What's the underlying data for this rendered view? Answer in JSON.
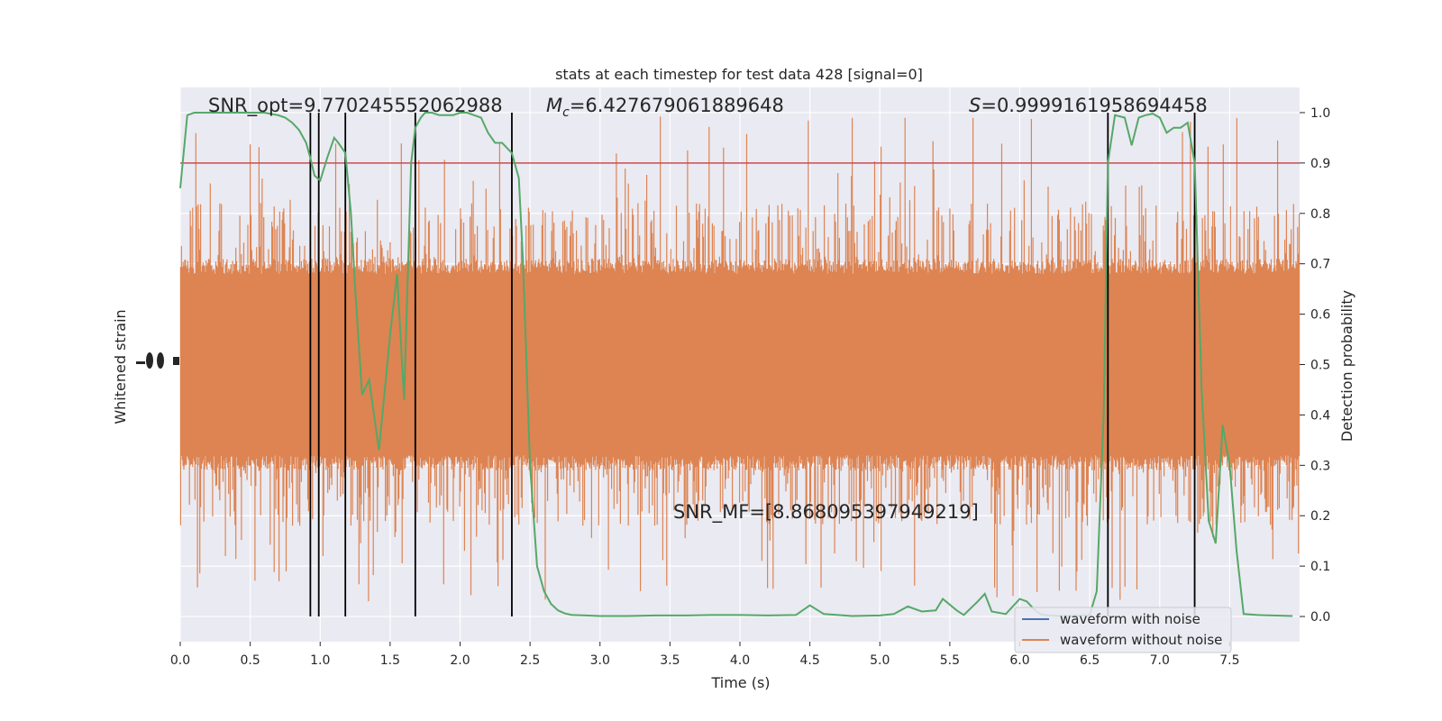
{
  "chart_data": {
    "type": "line",
    "title": "stats at each timestep for test data 428 [signal=0]",
    "xlabel": "Time (s)",
    "ylabel_left": "Whitened strain",
    "ylabel_right": "Detection probability",
    "xlim": [
      0.0,
      8.0
    ],
    "ylim_right": [
      -0.05,
      1.05
    ],
    "x_ticks": [
      "0.0",
      "0.5",
      "1.0",
      "1.5",
      "2.0",
      "2.5",
      "3.0",
      "3.5",
      "4.0",
      "4.5",
      "5.0",
      "5.5",
      "6.0",
      "6.5",
      "7.0",
      "7.5"
    ],
    "y_ticks_right": [
      "0.0",
      "0.1",
      "0.2",
      "0.3",
      "0.4",
      "0.5",
      "0.6",
      "0.7",
      "0.8",
      "0.9",
      "1.0"
    ],
    "grid": true,
    "legend_position": "lower-right",
    "legend": [
      {
        "label": "waveform with noise",
        "color": "#4c72b0"
      },
      {
        "label": "waveform without noise",
        "color": "#dd8452"
      }
    ],
    "annotations": {
      "snr_opt": "SNR_opt=9.770245552062988",
      "mc_symbol": "M",
      "mc_subscript": "c",
      "mc_value": "=6.427679061889648",
      "s_symbol": "S",
      "s_value": "=0.9999161958694458",
      "snr_mf": "SNR_MF=[8.868095397949219]"
    },
    "threshold": {
      "y": 0.9,
      "color": "#c44e52"
    },
    "vertical_lines_x": [
      0.93,
      0.99,
      1.18,
      1.68,
      2.37,
      6.63,
      7.25
    ],
    "strain_band": {
      "color": "#dd8452",
      "samples": 1400,
      "core_low": 0.32,
      "core_high": 0.68,
      "spike_min": 0.03,
      "spike_max": 1.0
    },
    "detection_probability": {
      "color": "#55a868",
      "x": [
        0.0,
        0.05,
        0.1,
        0.2,
        0.3,
        0.4,
        0.5,
        0.6,
        0.7,
        0.75,
        0.8,
        0.85,
        0.9,
        0.93,
        0.96,
        1.0,
        1.05,
        1.1,
        1.13,
        1.18,
        1.22,
        1.25,
        1.3,
        1.35,
        1.42,
        1.5,
        1.55,
        1.6,
        1.65,
        1.68,
        1.72,
        1.75,
        1.8,
        1.85,
        1.9,
        1.95,
        2.0,
        2.05,
        2.1,
        2.15,
        2.2,
        2.25,
        2.3,
        2.37,
        2.42,
        2.45,
        2.5,
        2.55,
        2.6,
        2.65,
        2.7,
        2.75,
        2.8,
        2.9,
        3.0,
        3.2,
        3.4,
        3.6,
        3.8,
        4.0,
        4.2,
        4.4,
        4.5,
        4.6,
        4.8,
        5.0,
        5.1,
        5.2,
        5.3,
        5.4,
        5.45,
        5.55,
        5.6,
        5.7,
        5.75,
        5.8,
        5.9,
        6.0,
        6.05,
        6.1,
        6.15,
        6.2,
        6.3,
        6.45,
        6.5,
        6.55,
        6.6,
        6.63,
        6.68,
        6.75,
        6.8,
        6.85,
        6.9,
        6.95,
        7.0,
        7.05,
        7.1,
        7.15,
        7.2,
        7.25,
        7.3,
        7.35,
        7.4,
        7.45,
        7.5,
        7.55,
        7.6,
        7.7,
        7.8,
        7.95
      ],
      "y": [
        0.85,
        0.995,
        1.0,
        1.0,
        1.0,
        1.0,
        1.0,
        1.0,
        0.995,
        0.99,
        0.98,
        0.965,
        0.94,
        0.91,
        0.875,
        0.865,
        0.91,
        0.95,
        0.94,
        0.92,
        0.8,
        0.65,
        0.44,
        0.47,
        0.33,
        0.56,
        0.68,
        0.43,
        0.9,
        0.97,
        0.99,
        1.0,
        1.0,
        0.995,
        0.995,
        0.995,
        1.0,
        1.0,
        0.995,
        0.99,
        0.96,
        0.94,
        0.94,
        0.92,
        0.87,
        0.7,
        0.3,
        0.1,
        0.05,
        0.025,
        0.012,
        0.006,
        0.003,
        0.002,
        0.001,
        0.001,
        0.002,
        0.002,
        0.003,
        0.003,
        0.002,
        0.003,
        0.022,
        0.005,
        0.001,
        0.002,
        0.005,
        0.02,
        0.01,
        0.012,
        0.035,
        0.012,
        0.003,
        0.03,
        0.045,
        0.01,
        0.005,
        0.035,
        0.03,
        0.015,
        0.004,
        0.002,
        0.001,
        0.002,
        0.003,
        0.05,
        0.4,
        0.9,
        0.995,
        0.99,
        0.935,
        0.99,
        0.995,
        0.998,
        0.99,
        0.96,
        0.97,
        0.97,
        0.98,
        0.9,
        0.45,
        0.19,
        0.145,
        0.38,
        0.3,
        0.13,
        0.005,
        0.003,
        0.002,
        0.001
      ]
    }
  }
}
